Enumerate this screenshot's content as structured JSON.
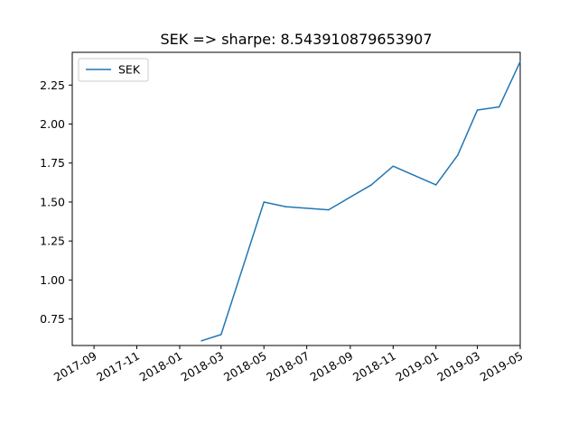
{
  "chart_data": {
    "type": "line",
    "title": "SEK => sharpe: 8.543910879653907",
    "xlabel": "",
    "ylabel": "",
    "x_ticks": [
      "2017-09",
      "2017-11",
      "2018-01",
      "2018-03",
      "2018-05",
      "2018-07",
      "2018-09",
      "2018-11",
      "2019-01",
      "2019-03",
      "2019-05"
    ],
    "y_ticks": [
      "0.75",
      "1.00",
      "1.25",
      "1.50",
      "1.75",
      "2.00",
      "2.25"
    ],
    "xlim": [
      "2017-08-01",
      "2019-05-01"
    ],
    "ylim": [
      0.58,
      2.46
    ],
    "grid": false,
    "legend": {
      "position": "top-left",
      "entries": [
        "SEK"
      ]
    },
    "series": [
      {
        "name": "SEK",
        "color": "#1f77b4",
        "x": [
          "2018-02-01",
          "2018-03-01",
          "2018-05-01",
          "2018-06-01",
          "2018-08-01",
          "2018-10-01",
          "2018-11-01",
          "2019-01-01",
          "2019-02-01",
          "2019-03-01",
          "2019-04-01",
          "2019-05-01"
        ],
        "values": [
          0.61,
          0.65,
          1.5,
          1.47,
          1.45,
          1.61,
          1.73,
          1.61,
          1.8,
          2.09,
          2.11,
          2.4
        ]
      }
    ]
  }
}
